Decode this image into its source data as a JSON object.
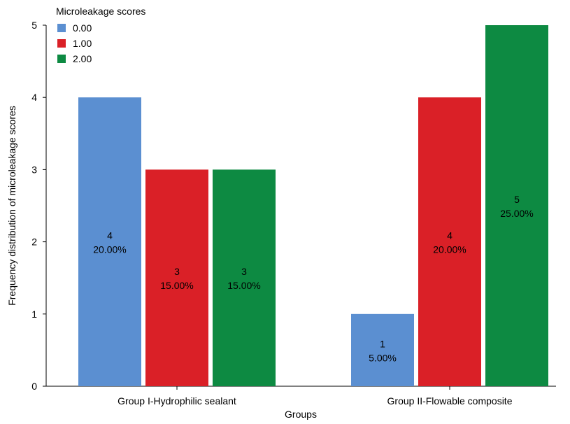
{
  "chart_data": {
    "type": "bar",
    "title": "",
    "xlabel": "Groups",
    "ylabel": "Frequency distribution of microleakage scores",
    "categories": [
      "Group I-Hydrophilic sealant",
      "Group II-Flowable composite"
    ],
    "ylim": [
      0,
      5
    ],
    "yticks": [
      "0",
      "1",
      "2",
      "3",
      "4",
      "5"
    ],
    "grid": false,
    "legend": {
      "title": "Microleakage scores",
      "placement": "top-left"
    },
    "series": [
      {
        "name": "0.00",
        "color": "#5b8fd1",
        "values": [
          4,
          1
        ],
        "labels": [
          [
            "4",
            "20.00%"
          ],
          [
            "1",
            "5.00%"
          ]
        ]
      },
      {
        "name": "1.00",
        "color": "#da2027",
        "values": [
          3,
          4
        ],
        "labels": [
          [
            "3",
            "15.00%"
          ],
          [
            "4",
            "20.00%"
          ]
        ]
      },
      {
        "name": "2.00",
        "color": "#0d8a42",
        "values": [
          3,
          5
        ],
        "labels": [
          [
            "3",
            "15.00%"
          ],
          [
            "5",
            "25.00%"
          ]
        ]
      }
    ]
  }
}
